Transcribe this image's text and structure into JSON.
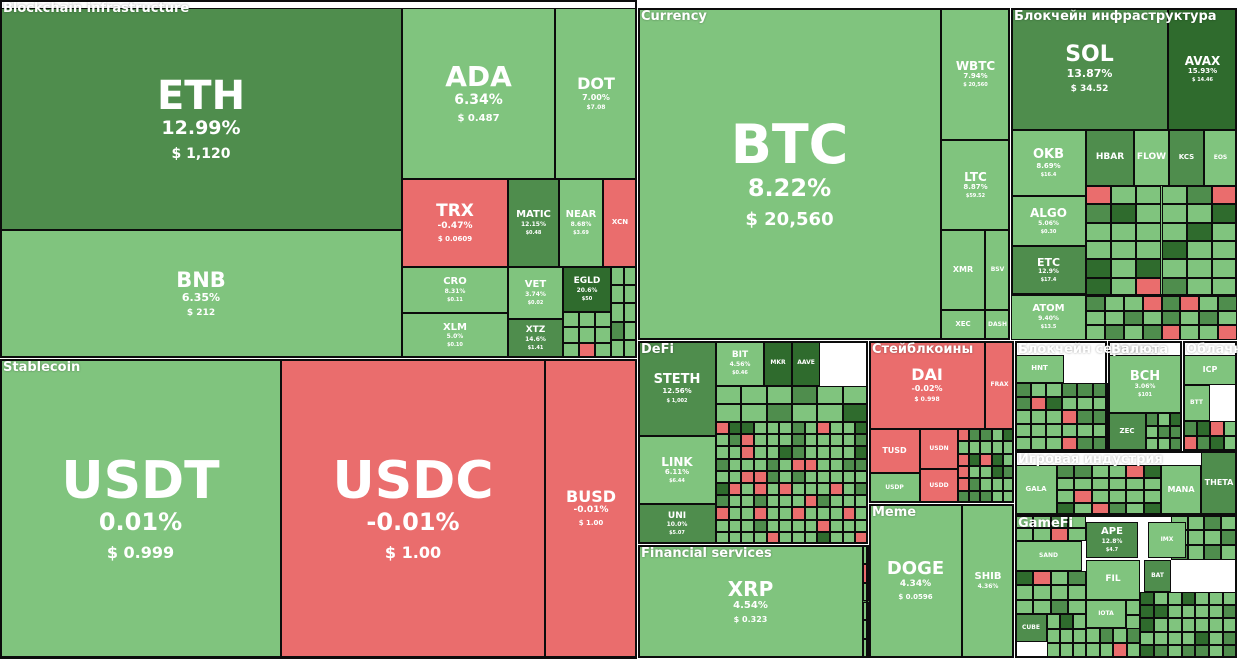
{
  "chart_data": {
    "type": "treemap",
    "colors": {
      "light_green": "#80c47e",
      "mid_green": "#4f8d4d",
      "dark_green": "#2f6b2d",
      "red": "#ea6d6d",
      "pale_red": "#f08b8b"
    },
    "sectors": [
      {
        "name": "Blockchain infrastructure"
      },
      {
        "name": "Stablecoin"
      },
      {
        "name": "Currency"
      },
      {
        "name": "Блокчейн инфраструктура"
      },
      {
        "name": "DeFi"
      },
      {
        "name": "Стейблкоины"
      },
      {
        "name": "Блокчейн сервисы"
      },
      {
        "name": "Валюта"
      },
      {
        "name": "Облачн"
      },
      {
        "name": "Игровая индустрия"
      },
      {
        "name": "GameFi"
      },
      {
        "name": "Financial services"
      },
      {
        "name": "Meme"
      }
    ],
    "tiles": [
      {
        "symbol": "ETH",
        "change": "12.99%",
        "price": "$ 1,120",
        "change_value": 12.99,
        "color": "mid_green"
      },
      {
        "symbol": "BNB",
        "change": "6.35%",
        "price": "$ 212",
        "change_value": 6.35,
        "color": "light_green"
      },
      {
        "symbol": "ADA",
        "change": "6.34%",
        "price": "$ 0.487",
        "change_value": 6.34,
        "color": "light_green"
      },
      {
        "symbol": "DOT",
        "change": "7.00%",
        "price": "$7.08",
        "change_value": 7.0,
        "color": "light_green"
      },
      {
        "symbol": "TRX",
        "change": "-0.47%",
        "price": "$ 0.0609",
        "change_value": -0.47,
        "color": "red"
      },
      {
        "symbol": "MATIC",
        "change": "12.15%",
        "price": "$0.48",
        "change_value": 12.15,
        "color": "mid_green"
      },
      {
        "symbol": "NEAR",
        "change": "8.68%",
        "price": "$3.69",
        "change_value": 8.68,
        "color": "light_green"
      },
      {
        "symbol": "XCN",
        "change": "",
        "price": "",
        "change_value": -1.5,
        "color": "red"
      },
      {
        "symbol": "CRO",
        "change": "8.31%",
        "price": "$0.11",
        "change_value": 8.31,
        "color": "light_green"
      },
      {
        "symbol": "VET",
        "change": "3.74%",
        "price": "$0.02",
        "change_value": 3.74,
        "color": "light_green"
      },
      {
        "symbol": "EGLD",
        "change": "20.6%",
        "price": "$50",
        "change_value": 20.6,
        "color": "dark_green"
      },
      {
        "symbol": "XLM",
        "change": "5.0%",
        "price": "$0.10",
        "change_value": 5.0,
        "color": "light_green"
      },
      {
        "symbol": "XTZ",
        "change": "14.6%",
        "price": "$1.41",
        "change_value": 14.6,
        "color": "mid_green"
      },
      {
        "symbol": "USDT",
        "change": "0.01%",
        "price": "$ 0.999",
        "change_value": 0.01,
        "color": "light_green"
      },
      {
        "symbol": "USDC",
        "change": "-0.01%",
        "price": "$ 1.00",
        "change_value": -0.01,
        "color": "red"
      },
      {
        "symbol": "BUSD",
        "change": "-0.01%",
        "price": "$ 1.00",
        "change_value": -0.01,
        "color": "red"
      },
      {
        "symbol": "BTC",
        "change": "8.22%",
        "price": "$ 20,560",
        "change_value": 8.22,
        "color": "light_green"
      },
      {
        "symbol": "WBTC",
        "change": "7.94%",
        "price": "$ 20,560",
        "change_value": 7.94,
        "color": "light_green"
      },
      {
        "symbol": "LTC",
        "change": "8.87%",
        "price": "$59.52",
        "change_value": 8.87,
        "color": "light_green"
      },
      {
        "symbol": "XMR",
        "change": "",
        "price": "",
        "change_value": 6.0,
        "color": "light_green"
      },
      {
        "symbol": "BSV",
        "change": "",
        "price": "",
        "change_value": 5.0,
        "color": "light_green"
      },
      {
        "symbol": "XEC",
        "change": "",
        "price": "",
        "change_value": 5.0,
        "color": "light_green"
      },
      {
        "symbol": "DASH",
        "change": "",
        "price": "",
        "change_value": 5.0,
        "color": "light_green"
      },
      {
        "symbol": "SOL",
        "change": "13.87%",
        "price": "$ 34.52",
        "change_value": 13.87,
        "color": "mid_green"
      },
      {
        "symbol": "AVAX",
        "change": "15.93%",
        "price": "$ 14.46",
        "change_value": 15.93,
        "color": "dark_green"
      },
      {
        "symbol": "OKB",
        "change": "8.69%",
        "price": "$16.4",
        "change_value": 8.69,
        "color": "light_green"
      },
      {
        "symbol": "HBAR",
        "change": "",
        "price": "",
        "change_value": 14.0,
        "color": "mid_green"
      },
      {
        "symbol": "FLOW",
        "change": "",
        "price": "",
        "change_value": 9.0,
        "color": "light_green"
      },
      {
        "symbol": "KCS",
        "change": "",
        "price": "",
        "change_value": 15.0,
        "color": "mid_green"
      },
      {
        "symbol": "EOS",
        "change": "",
        "price": "",
        "change_value": 9.0,
        "color": "light_green"
      },
      {
        "symbol": "ALGO",
        "change": "5.06%",
        "price": "$0.30",
        "change_value": 5.06,
        "color": "light_green"
      },
      {
        "symbol": "ETC",
        "change": "12.9%",
        "price": "$17.4",
        "change_value": 12.9,
        "color": "mid_green"
      },
      {
        "symbol": "ATOM",
        "change": "9.40%",
        "price": "$13.5",
        "change_value": 9.4,
        "color": "light_green"
      },
      {
        "symbol": "STETH",
        "change": "12.56%",
        "price": "$ 1,002",
        "change_value": 12.56,
        "color": "mid_green"
      },
      {
        "symbol": "BIT",
        "change": "4.56%",
        "price": "$0.46",
        "change_value": 4.56,
        "color": "light_green"
      },
      {
        "symbol": "MKR",
        "change": "",
        "price": "",
        "change_value": 18.0,
        "color": "dark_green"
      },
      {
        "symbol": "AAVE",
        "change": "",
        "price": "",
        "change_value": 17.0,
        "color": "dark_green"
      },
      {
        "symbol": "LINK",
        "change": "6.11%",
        "price": "$6.44",
        "change_value": 6.11,
        "color": "light_green"
      },
      {
        "symbol": "UNI",
        "change": "10.0%",
        "price": "$5.07",
        "change_value": 10.0,
        "color": "mid_green"
      },
      {
        "symbol": "DAI",
        "change": "-0.02%",
        "price": "$ 0.998",
        "change_value": -0.02,
        "color": "red"
      },
      {
        "symbol": "TUSD",
        "change": "",
        "price": "",
        "change_value": -0.1,
        "color": "red"
      },
      {
        "symbol": "USDN",
        "change": "",
        "price": "",
        "change_value": -0.2,
        "color": "red"
      },
      {
        "symbol": "USDD",
        "change": "",
        "price": "",
        "change_value": -0.2,
        "color": "red"
      },
      {
        "symbol": "FRAX",
        "change": "",
        "price": "",
        "change_value": -0.1,
        "color": "red"
      },
      {
        "symbol": "USDP",
        "change": "",
        "price": "",
        "change_value": 0.1,
        "color": "light_green"
      },
      {
        "symbol": "HNT",
        "change": "",
        "price": "",
        "change_value": 5.0,
        "color": "light_green"
      },
      {
        "symbol": "BCH",
        "change": "3.06%",
        "price": "$101",
        "change_value": 3.06,
        "color": "light_green"
      },
      {
        "symbol": "ZEC",
        "change": "",
        "price": "",
        "change_value": 11.0,
        "color": "mid_green"
      },
      {
        "symbol": "ICP",
        "change": "",
        "price": "",
        "change_value": 6.0,
        "color": "light_green"
      },
      {
        "symbol": "BTT",
        "change": "",
        "price": "",
        "change_value": 5.0,
        "color": "light_green"
      },
      {
        "symbol": "MANA",
        "change": "",
        "price": "",
        "change_value": 6.0,
        "color": "light_green"
      },
      {
        "symbol": "THETA",
        "change": "",
        "price": "",
        "change_value": 12.0,
        "color": "mid_green"
      },
      {
        "symbol": "GALA",
        "change": "",
        "price": "",
        "change_value": 6.0,
        "color": "light_green"
      },
      {
        "symbol": "SAND",
        "change": "",
        "price": "",
        "change_value": 6.0,
        "color": "light_green"
      },
      {
        "symbol": "APE",
        "change": "12.8%",
        "price": "$4.7",
        "change_value": 12.8,
        "color": "mid_green"
      },
      {
        "symbol": "IMX",
        "change": "",
        "price": "",
        "change_value": 6.0,
        "color": "light_green"
      },
      {
        "symbol": "FIL",
        "change": "",
        "price": "",
        "change_value": 6.0,
        "color": "light_green"
      },
      {
        "symbol": "BAT",
        "change": "",
        "price": "",
        "change_value": 11.0,
        "color": "mid_green"
      },
      {
        "symbol": "IOTA",
        "change": "",
        "price": "",
        "change_value": 6.0,
        "color": "light_green"
      },
      {
        "symbol": "CUBE",
        "change": "",
        "price": "",
        "change_value": 12.0,
        "color": "mid_green"
      },
      {
        "symbol": "XRP",
        "change": "4.54%",
        "price": "$ 0.323",
        "change_value": 4.54,
        "color": "light_green"
      },
      {
        "symbol": "DOGE",
        "change": "4.34%",
        "price": "$ 0.0596",
        "change_value": 4.34,
        "color": "light_green"
      },
      {
        "symbol": "SHIB",
        "change": "4.36%",
        "price": "",
        "change_value": 4.36,
        "color": "light_green"
      }
    ]
  }
}
